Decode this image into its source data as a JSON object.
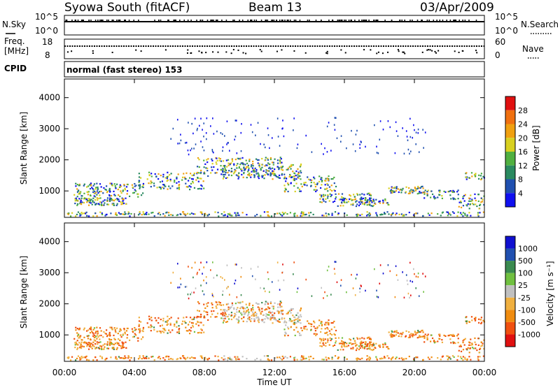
{
  "header": {
    "title": "Syowa South (fitACF)",
    "beam": "Beam 13",
    "date": "03/Apr/2009"
  },
  "top_panels": {
    "nsky_label": "N.Sky",
    "nsky_ticks": [
      "10^5",
      "10^0"
    ],
    "nsearch_label": "N.Search",
    "nsearch_ticks": [
      "10^5",
      "10^0"
    ],
    "freq_label_1": "Freq.",
    "freq_label_2": "[MHz]",
    "freq_ticks": [
      "18",
      "8"
    ],
    "nave_label": "Nave",
    "nave_ticks": [
      "60",
      "0"
    ],
    "cpid_label": "CPID",
    "cpid_value": "normal (fast stereo) 153"
  },
  "colors": {
    "power_scale": [
      "#1010f0",
      "#2050b0",
      "#2a8a60",
      "#50b040",
      "#d8d020",
      "#f0a010",
      "#f07010",
      "#e01010"
    ],
    "velocity_scale": [
      "#e01010",
      "#f05010",
      "#f08c10",
      "#f0b040",
      "#c0c0c0",
      "#70c040",
      "#3a8a50",
      "#2050b0",
      "#1010d0"
    ]
  },
  "chart_data": [
    {
      "type": "heatmap",
      "name": "power",
      "ylabel": "Slant Range [km]",
      "yticks": [
        "1000",
        "2000",
        "3000",
        "4000"
      ],
      "ylim": [
        150,
        4600
      ],
      "xlim_hours": [
        0,
        24
      ],
      "colorbar_label": "Power [dB]",
      "colorbar_ticks": [
        "4",
        "8",
        "12",
        "16",
        "20",
        "24",
        "28"
      ],
      "clim": [
        0,
        30
      ]
    },
    {
      "type": "heatmap",
      "name": "velocity",
      "ylabel": "Slant Range [km]",
      "yticks": [
        "1000",
        "2000",
        "3000",
        "4000"
      ],
      "ylim": [
        150,
        4600
      ],
      "xlim_hours": [
        0,
        24
      ],
      "colorbar_label": "Velocity [m s⁻¹]",
      "colorbar_ticks": [
        "1000",
        "500",
        "100",
        "25",
        "-25",
        "-100",
        "-500",
        "-1000"
      ]
    }
  ],
  "x_axis": {
    "ticks": [
      "00:00",
      "04:00",
      "08:00",
      "12:00",
      "16:00",
      "20:00",
      "00:00"
    ],
    "label": "Time UT"
  }
}
